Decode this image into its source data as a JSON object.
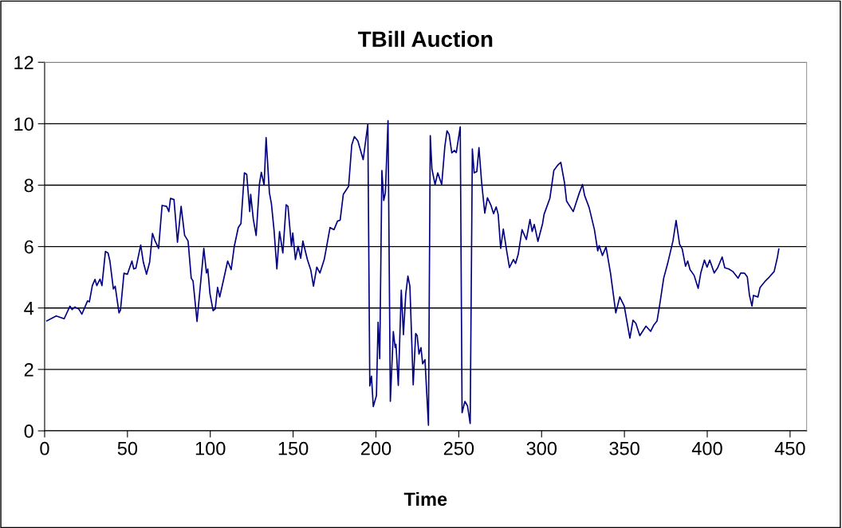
{
  "chart_data": {
    "type": "line",
    "title": "TBill Auction",
    "xlabel": "Time",
    "xlim": [
      0,
      460
    ],
    "xticks": [
      0,
      50,
      100,
      150,
      200,
      250,
      300,
      350,
      400,
      450
    ],
    "ylim": [
      0,
      12
    ],
    "yticks": [
      0,
      2,
      4,
      6,
      8,
      10,
      12
    ],
    "grid": "y",
    "marker": "none",
    "line_style": "solid",
    "series": [
      {
        "color": "#000080",
        "x": [
          1.3,
          7,
          11.8,
          15.3,
          16.6,
          18.2,
          20.6,
          22.5,
          25.9,
          27.0,
          28.8,
          30.4,
          31.5,
          33.4,
          34.6,
          36.7,
          38.3,
          39.4,
          41.5,
          42.6,
          44.9,
          45.8,
          47.9,
          50.0,
          52.7,
          53.8,
          55.1,
          58.0,
          59.6,
          61.5,
          63.4,
          65.1,
          66.7,
          68.8,
          70.9,
          73.6,
          75.0,
          76.0,
          78.1,
          80.2,
          82.4,
          84.5,
          86.6,
          88.5,
          89.6,
          92.0,
          96.1,
          97.7,
          98.5,
          99.8,
          101.7,
          103.0,
          104.4,
          105.7,
          107.8,
          110.5,
          112.6,
          114.5,
          116.9,
          118.5,
          120.6,
          122.0,
          123.8,
          124.4,
          126.0,
          127.7,
          129.7,
          130.8,
          132.5,
          133.7,
          135.7,
          136.9,
          138.5,
          140.2,
          141.8,
          143.8,
          145.8,
          146.9,
          149.0,
          149.8,
          151.4,
          153.0,
          154.6,
          155.9,
          158.6,
          160.7,
          162.3,
          164.3,
          166.2,
          168.8,
          170.7,
          172.3,
          174.7,
          176.8,
          178.4,
          180.3,
          183.5,
          185.4,
          187.0,
          189.1,
          192.3,
          195.1,
          196.3,
          197.3,
          198.4,
          200.3,
          201.3,
          202.3,
          203.6,
          204.7,
          205.7,
          207.3,
          208.7,
          210.5,
          211.6,
          212.1,
          213.5,
          215.3,
          216.6,
          218.0,
          219.3,
          220.5,
          222.5,
          224.0,
          224.9,
          226.0,
          227.2,
          228.2,
          229.6,
          231.7,
          232.8,
          233.8,
          235.7,
          237.3,
          239.7,
          241.6,
          242.9,
          244.2,
          245.8,
          247.4,
          248.5,
          250.9,
          252.0,
          253.7,
          255.3,
          256.9,
          258.2,
          259.3,
          260.9,
          262.2,
          263.8,
          265.7,
          267.3,
          269.4,
          271.0,
          272.6,
          273.8,
          275.3,
          276.9,
          279.0,
          280.6,
          283.0,
          284.3,
          285.9,
          288.2,
          290.8,
          293.0,
          294.3,
          295.6,
          297.8,
          300.6,
          301.5,
          305.0,
          307.4,
          309.9,
          311.6,
          313.8,
          315.1,
          319.1,
          322.8,
          324.7,
          326.0,
          328.7,
          331.9,
          333.9,
          334.8,
          336.7,
          338.9,
          341.6,
          344.8,
          347.2,
          349.9,
          353.3,
          355.2,
          356.9,
          359.3,
          363.0,
          365.8,
          367.8,
          369.7,
          371.3,
          373.7,
          376.1,
          379.3,
          381.2,
          383.3,
          384.9,
          386.9,
          388.2,
          389.6,
          392.1,
          394.5,
          396.1,
          398.3,
          399.9,
          401.5,
          404.2,
          406.3,
          409.0,
          410.6,
          413.0,
          415.4,
          418.6,
          420.2,
          422.6,
          424.2,
          425.5,
          427.0,
          427.9,
          430.6,
          431.9,
          435.1,
          437.5,
          440.4,
          442.4,
          443.2
        ],
        "values": [
          3.58,
          3.74,
          3.65,
          4.06,
          3.95,
          4.03,
          3.97,
          3.8,
          4.23,
          4.2,
          4.73,
          4.93,
          4.73,
          4.94,
          4.73,
          5.84,
          5.79,
          5.53,
          4.62,
          4.71,
          3.84,
          3.93,
          5.13,
          5.1,
          5.53,
          5.27,
          5.3,
          6.05,
          5.49,
          5.1,
          5.49,
          6.43,
          6.18,
          5.94,
          7.34,
          7.31,
          7.14,
          7.57,
          7.53,
          6.14,
          7.31,
          6.37,
          6.18,
          4.97,
          4.88,
          3.56,
          5.94,
          5.14,
          5.27,
          4.47,
          3.91,
          3.97,
          4.67,
          4.36,
          4.87,
          5.53,
          5.25,
          6.01,
          6.62,
          6.75,
          8.4,
          8.35,
          7.14,
          7.7,
          6.88,
          6.36,
          8.05,
          8.42,
          8.0,
          9.55,
          7.75,
          7.4,
          6.53,
          5.27,
          6.49,
          5.79,
          7.36,
          7.31,
          6.01,
          6.44,
          5.58,
          6.01,
          5.62,
          6.18,
          5.58,
          5.23,
          4.71,
          5.33,
          5.14,
          5.58,
          6.14,
          6.62,
          6.55,
          6.83,
          6.86,
          7.7,
          7.96,
          9.31,
          9.58,
          9.44,
          8.83,
          9.98,
          1.46,
          1.78,
          0.79,
          1.15,
          3.54,
          2.35,
          8.48,
          7.5,
          7.75,
          10.1,
          0.96,
          3.23,
          2.71,
          2.82,
          1.48,
          4.58,
          3.13,
          4.45,
          5.04,
          4.71,
          1.5,
          3.17,
          3.1,
          2.5,
          2.71,
          2.18,
          2.32,
          0.18,
          9.61,
          8.53,
          8.02,
          8.4,
          8.02,
          9.26,
          9.77,
          9.65,
          9.05,
          9.13,
          9.06,
          9.9,
          0.59,
          0.96,
          0.81,
          0.24,
          9.18,
          8.4,
          8.44,
          9.22,
          8.09,
          7.09,
          7.59,
          7.35,
          7.07,
          7.29,
          7.05,
          5.94,
          6.57,
          5.84,
          5.32,
          5.58,
          5.45,
          5.75,
          6.55,
          6.23,
          6.88,
          6.49,
          6.72,
          6.17,
          6.75,
          7.05,
          7.57,
          8.48,
          8.66,
          8.74,
          8.09,
          7.48,
          7.14,
          7.75,
          8.02,
          7.66,
          7.27,
          6.55,
          5.86,
          6.03,
          5.71,
          5.99,
          5.14,
          3.84,
          4.36,
          4.06,
          3.02,
          3.6,
          3.5,
          3.1,
          3.41,
          3.24,
          3.45,
          3.58,
          4.1,
          4.97,
          5.45,
          6.18,
          6.85,
          6.08,
          5.92,
          5.36,
          5.53,
          5.25,
          5.06,
          4.64,
          5.14,
          5.56,
          5.33,
          5.56,
          5.14,
          5.31,
          5.66,
          5.31,
          5.27,
          5.19,
          4.97,
          5.14,
          5.13,
          5.01,
          4.41,
          4.06,
          4.41,
          4.36,
          4.67,
          4.88,
          5.01,
          5.19,
          5.66,
          5.92
        ]
      }
    ]
  }
}
